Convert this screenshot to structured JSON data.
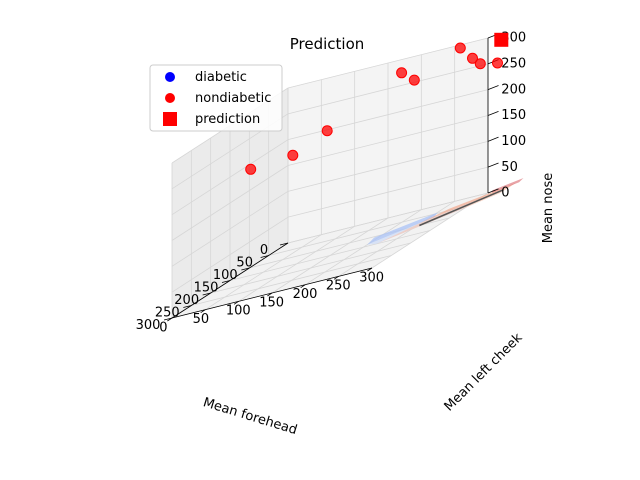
{
  "chart_data": {
    "type": "scatter",
    "subtype": "3d",
    "title": "Prediction",
    "xlabel": "Mean forehead",
    "ylabel": "Mean left cheek",
    "zlabel": "Mean nose",
    "x_ticks": [
      "0",
      "50",
      "100",
      "150",
      "200",
      "250",
      "300"
    ],
    "y_ticks": [
      "0",
      "50",
      "100",
      "150",
      "200",
      "250",
      "300"
    ],
    "z_ticks": [
      "0",
      "50",
      "100",
      "150",
      "200",
      "250",
      "300"
    ],
    "grid": true,
    "legend_position": "top-left",
    "legend": [
      {
        "label": "diabetic",
        "marker": "circle",
        "color": "#0000ff"
      },
      {
        "label": "nondiabetic",
        "marker": "circle",
        "color": "#ff0000"
      },
      {
        "label": "prediction",
        "marker": "square",
        "color": "#ff0000"
      }
    ],
    "series": [
      {
        "name": "diabetic",
        "color": "#0000ff",
        "points": []
      },
      {
        "name": "nondiabetic",
        "color": "#ff0000",
        "points": [
          {
            "x": 200,
            "y": 60,
            "z": 220
          },
          {
            "x": 160,
            "y": 100,
            "z": 215
          },
          {
            "x": 140,
            "y": 140,
            "z": 240
          },
          {
            "x": 120,
            "y": 240,
            "z": 310
          },
          {
            "x": 70,
            "y": 230,
            "z": 275
          },
          {
            "x": 40,
            "y": 300,
            "z": 280
          },
          {
            "x": 20,
            "y": 270,
            "z": 300
          },
          {
            "x": 20,
            "y": 300,
            "z": 260
          },
          {
            "x": 10,
            "y": 320,
            "z": 250
          }
        ]
      },
      {
        "name": "prediction",
        "color": "#ff0000",
        "points": [
          {
            "x": 0,
            "y": 320,
            "z": 290
          }
        ]
      }
    ],
    "decision_surface": {
      "colormap": "coolwarm",
      "z_level": 0
    }
  }
}
